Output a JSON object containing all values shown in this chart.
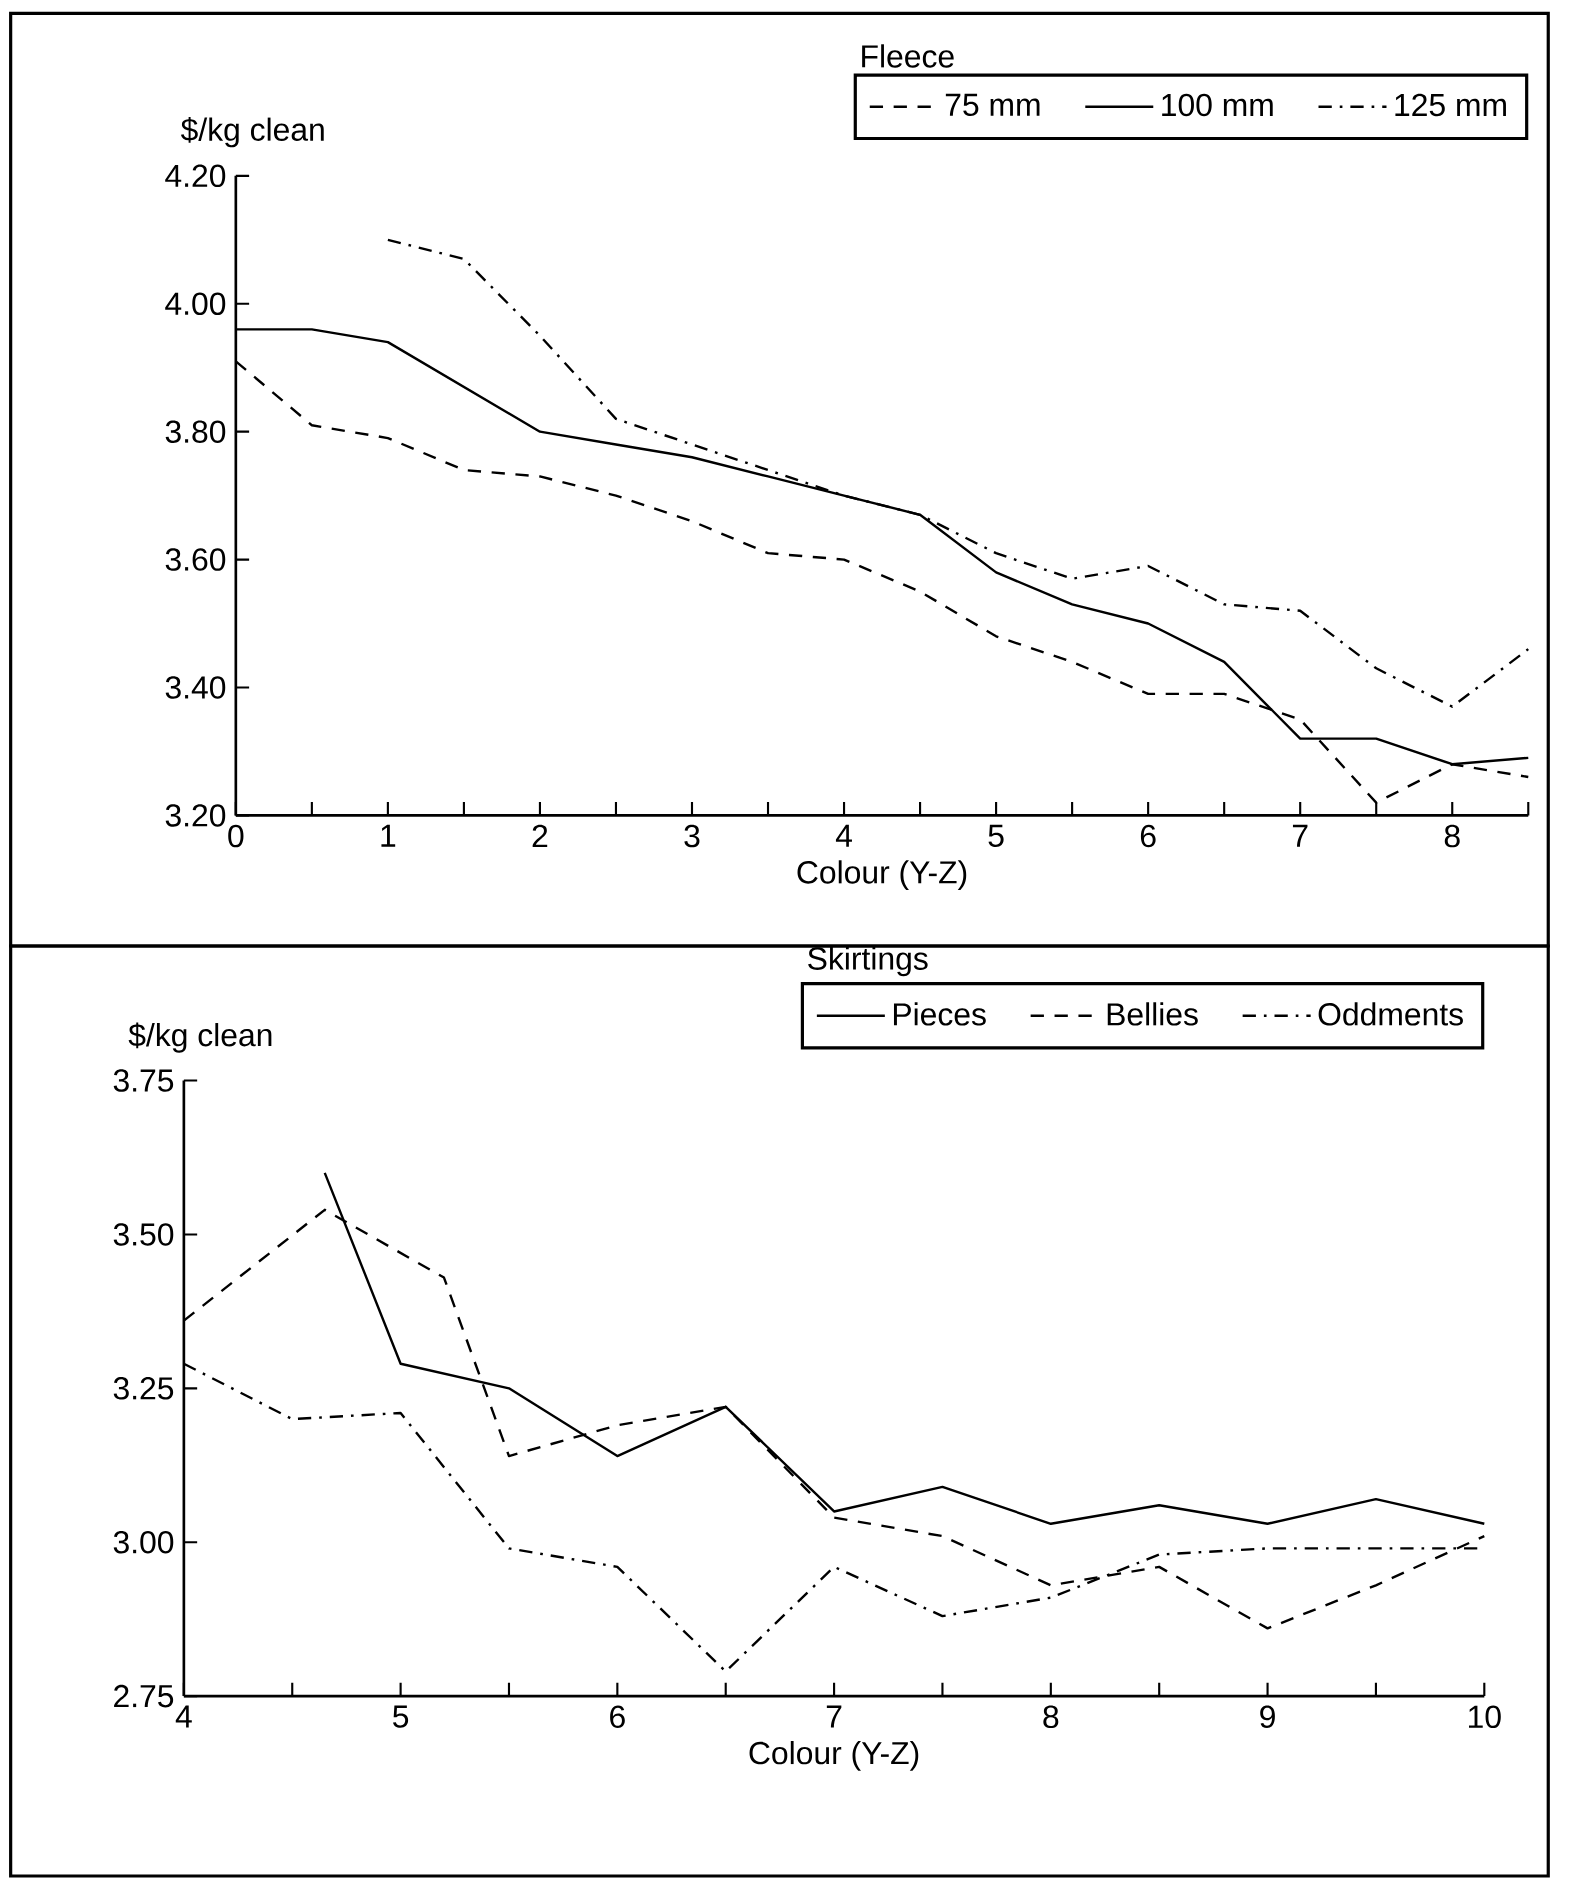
{
  "chart_data": [
    {
      "type": "line",
      "legend_title": "Fleece",
      "xlabel": "Colour (Y-Z)",
      "ylabel": "$/kg clean",
      "x": [
        0,
        0.5,
        1,
        1.5,
        2,
        2.5,
        3,
        3.5,
        4,
        4.5,
        5,
        5.5,
        6,
        6.5,
        7,
        7.5,
        8,
        8.5
      ],
      "series": [
        {
          "name": "75 mm",
          "color": "#000000",
          "line_style": "dashed",
          "values": [
            3.91,
            3.81,
            3.79,
            3.74,
            3.73,
            3.7,
            3.66,
            3.61,
            3.6,
            3.55,
            3.48,
            3.44,
            3.39,
            3.39,
            3.35,
            3.22,
            3.28,
            3.26
          ]
        },
        {
          "name": "100 mm",
          "color": "#000000",
          "line_style": "solid",
          "values": [
            3.96,
            3.96,
            3.94,
            3.87,
            3.8,
            3.78,
            3.76,
            3.73,
            3.7,
            3.67,
            3.58,
            3.53,
            3.5,
            3.44,
            3.32,
            3.32,
            3.28,
            3.29
          ]
        },
        {
          "name": "125 mm",
          "color": "#000000",
          "line_style": "dashdot",
          "values": [
            null,
            null,
            4.1,
            4.07,
            3.95,
            3.82,
            3.78,
            3.74,
            3.7,
            3.67,
            3.61,
            3.57,
            3.59,
            3.53,
            3.52,
            3.43,
            3.37,
            3.46
          ]
        }
      ],
      "xlim": [
        0,
        8.5
      ],
      "ylim": [
        3.2,
        4.2
      ],
      "xticks": [
        0,
        {
          "value": 0.5,
          "label": null
        },
        1,
        {
          "value": 1.5,
          "label": null
        },
        2,
        {
          "value": 2.5,
          "label": null
        },
        3,
        {
          "value": 3.5,
          "label": null
        },
        4,
        {
          "value": 4.5,
          "label": null
        },
        5,
        {
          "value": 5.5,
          "label": null
        },
        6,
        {
          "value": 6.5,
          "label": null
        },
        7,
        {
          "value": 7.5,
          "label": null
        },
        8,
        {
          "value": 8.5,
          "label": null
        }
      ],
      "yticks": [
        {
          "value": 3.2,
          "label": "3.20"
        },
        {
          "value": 3.4,
          "label": "3.40"
        },
        {
          "value": 3.6,
          "label": "3.60"
        },
        {
          "value": 3.8,
          "label": "3.80"
        },
        {
          "value": 4.0,
          "label": "4.00"
        },
        {
          "value": 4.2,
          "label": "4.20"
        }
      ],
      "legend": "top right",
      "grid": false
    },
    {
      "type": "line",
      "legend_title": "Skirtings",
      "xlabel": "Colour (Y-Z)",
      "ylabel": "$/kg clean",
      "series": [
        {
          "name": "Pieces",
          "color": "#000000",
          "line_style": "solid",
          "x": [
            4.65,
            5,
            5.5,
            6,
            6.5,
            7,
            7.5,
            8,
            8.5,
            9,
            9.5,
            10
          ],
          "values": [
            3.6,
            3.29,
            3.25,
            3.14,
            3.22,
            3.05,
            3.09,
            3.03,
            3.06,
            3.03,
            3.07,
            3.03
          ]
        },
        {
          "name": "Bellies",
          "color": "#000000",
          "line_style": "dashed",
          "x": [
            4,
            4.65,
            5.2,
            5.5,
            6,
            6.5,
            7,
            7.5,
            8,
            8.5,
            9,
            9.5,
            10
          ],
          "values": [
            3.36,
            3.54,
            3.43,
            3.14,
            3.19,
            3.22,
            3.04,
            3.01,
            2.93,
            2.96,
            2.86,
            2.93,
            3.01
          ]
        },
        {
          "name": "Oddments",
          "color": "#000000",
          "line_style": "dashdot",
          "x": [
            4,
            4.5,
            5,
            5.5,
            6,
            6.5,
            7,
            7.5,
            8,
            8.5,
            9,
            9.5,
            10
          ],
          "values": [
            3.29,
            3.2,
            3.21,
            2.99,
            2.96,
            2.79,
            2.96,
            2.88,
            2.91,
            2.98,
            2.99,
            2.99,
            2.99
          ]
        }
      ],
      "xlim": [
        4,
        10
      ],
      "ylim": [
        2.75,
        3.75
      ],
      "xticks": [
        4,
        {
          "value": 4.5,
          "label": null
        },
        5,
        {
          "value": 5.5,
          "label": null
        },
        6,
        {
          "value": 6.5,
          "label": null
        },
        7,
        {
          "value": 7.5,
          "label": null
        },
        8,
        {
          "value": 8.5,
          "label": null
        },
        9,
        {
          "value": 9.5,
          "label": null
        },
        10
      ],
      "yticks": [
        {
          "value": 2.75,
          "label": "2.75"
        },
        {
          "value": 3.0,
          "label": "3.00"
        },
        {
          "value": 3.25,
          "label": "3.25"
        },
        {
          "value": 3.5,
          "label": "3.50"
        },
        {
          "value": 3.75,
          "label": "3.75"
        }
      ],
      "legend": "top right",
      "grid": false
    }
  ]
}
